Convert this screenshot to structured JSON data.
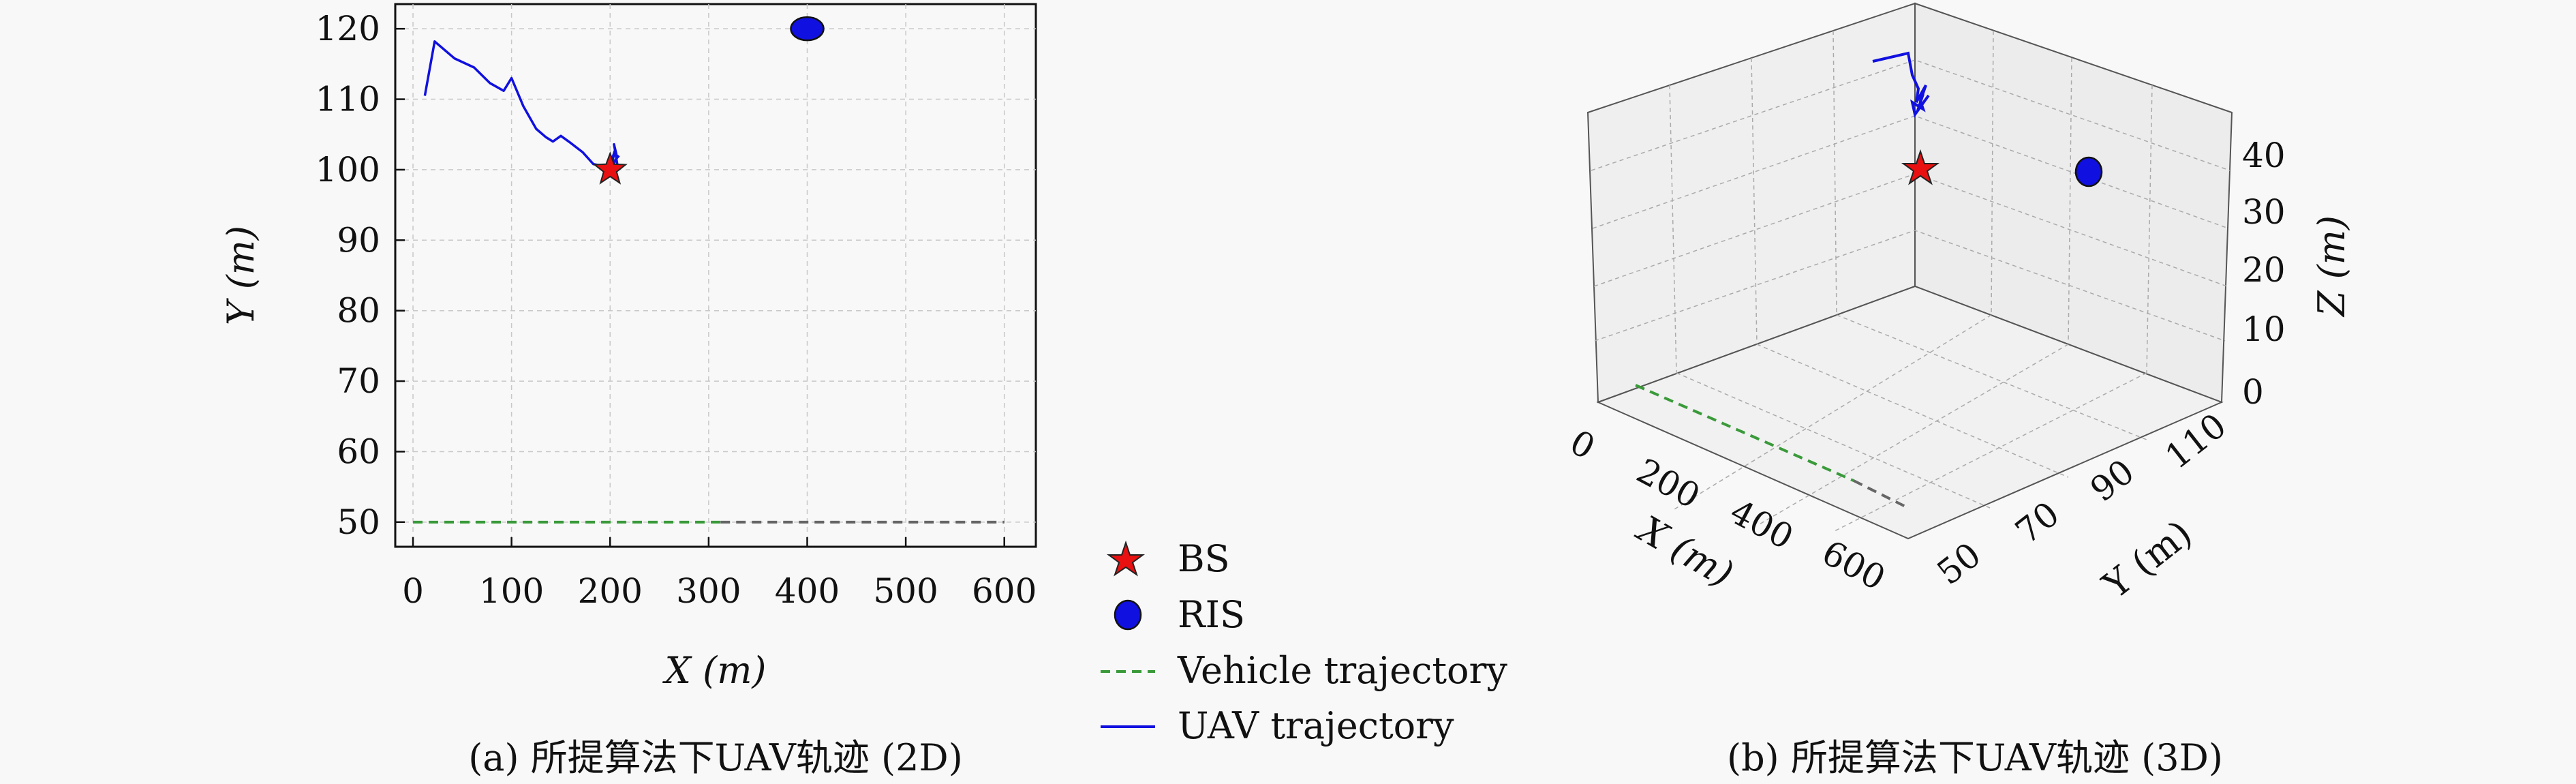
{
  "panel_a": {
    "caption": "(a) 所提算法下UAV轨迹 (2D)"
  },
  "panel_b": {
    "caption": "(b) 所提算法下UAV轨迹 (3D)"
  },
  "colors": {
    "uav": "#1010e0",
    "vehicle_green": "#3a9a3a",
    "vehicle_gray": "#666666",
    "bs": "#e81010",
    "ris": "#1010e0",
    "grid": "#c8c8c8"
  },
  "legend": {
    "items": [
      {
        "label": "BS",
        "icon": "red-star-icon"
      },
      {
        "label": "RIS",
        "icon": "blue-circle-icon"
      },
      {
        "label": "Vehicle trajectory",
        "icon": "green-dashed-line-icon"
      },
      {
        "label": "UAV trajectory",
        "icon": "blue-line-icon"
      }
    ]
  },
  "chart_data": [
    {
      "type": "line",
      "title": "",
      "xlabel": "X (m)",
      "ylabel": "Y (m)",
      "xlim": [
        -18,
        632
      ],
      "ylim": [
        46.5,
        123.5
      ],
      "xticks": [
        0,
        100,
        200,
        300,
        400,
        500,
        600
      ],
      "yticks": [
        50,
        60,
        70,
        80,
        90,
        100,
        110,
        120
      ],
      "grid": true,
      "series": [
        {
          "name": "UAV trajectory",
          "x": [
            12,
            22,
            42,
            62,
            78,
            92,
            100,
            112,
            125,
            135,
            142,
            150,
            160,
            172,
            183,
            190,
            197,
            202,
            205,
            200,
            207,
            204,
            208,
            203,
            209
          ],
          "y": [
            110.5,
            118.2,
            115.8,
            114.5,
            112.3,
            111.2,
            113.0,
            109.0,
            105.8,
            104.6,
            104.0,
            104.8,
            103.8,
            102.5,
            100.8,
            100.6,
            100.5,
            101.5,
            102.8,
            99.8,
            101.8,
            103.6,
            100.2,
            101.0,
            102.0
          ]
        },
        {
          "name": "Vehicle trajectory",
          "x": [
            0,
            600
          ],
          "y": [
            50,
            50
          ]
        }
      ],
      "markers": [
        {
          "name": "BS",
          "x": 200,
          "y": 100
        },
        {
          "name": "RIS",
          "x": 400,
          "y": 120
        }
      ]
    },
    {
      "type": "line",
      "title": "",
      "xlabel": "X (m)",
      "ylabel": "Y (m)",
      "zlabel": "Z (m)",
      "xticks": [
        0,
        200,
        400,
        600
      ],
      "yticks": [
        50,
        70,
        90,
        110
      ],
      "zticks": [
        0,
        10,
        20,
        30,
        40
      ],
      "grid": true,
      "series": [
        {
          "name": "UAV trajectory",
          "note_3d": "near x≈0–200, y≈110–120, z≈40"
        },
        {
          "name": "Vehicle trajectory",
          "x": [
            0,
            600
          ],
          "y": [
            50,
            50
          ],
          "z": [
            0,
            0
          ]
        }
      ],
      "markers": [
        {
          "name": "BS",
          "x": 200,
          "y": 100,
          "z": 30
        },
        {
          "name": "RIS",
          "x": 400,
          "y": 120,
          "z": 30
        }
      ]
    }
  ]
}
